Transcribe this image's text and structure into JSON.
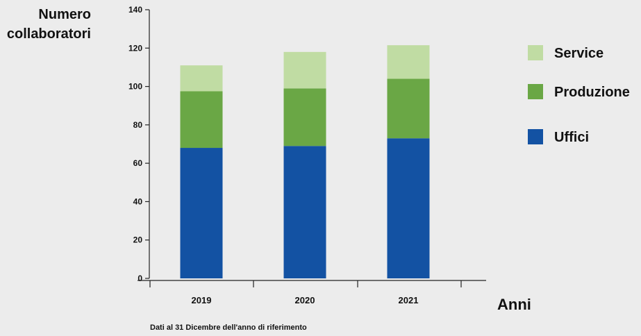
{
  "chart_data": {
    "type": "bar",
    "stacked": true,
    "categories": [
      "2019",
      "2020",
      "2021"
    ],
    "series": [
      {
        "name": "Uffici",
        "color": "#1352a3",
        "values": [
          68,
          69,
          73
        ]
      },
      {
        "name": "Produzione",
        "color": "#6aa745",
        "values": [
          29.5,
          30,
          31
        ]
      },
      {
        "name": "Service",
        "color": "#c0dca3",
        "values": [
          13.5,
          19,
          17.5
        ]
      }
    ],
    "ylabel": "Numero collaboratori",
    "xlabel": "Anni",
    "ylim": [
      0,
      140
    ],
    "yticks": [
      "0",
      "20",
      "40",
      "60",
      "80",
      "100",
      "120",
      "140"
    ],
    "legend_order": [
      "Service",
      "Produzione",
      "Uffici"
    ],
    "legend_position": "right",
    "grid": false,
    "footnote": "Dati al 31 Dicembre dell'anno di riferimento"
  }
}
